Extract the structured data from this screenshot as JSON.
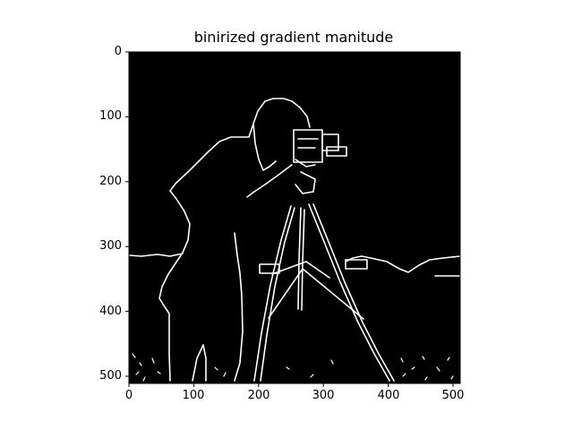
{
  "figure": {
    "title": "binirized gradient manitude",
    "background_color": "#000000",
    "edge_color": "#ffffff",
    "content_description": "binary edge map of a photographer with a tripod camera on a field with distant buildings",
    "x_axis": {
      "range": [
        0,
        511
      ],
      "ticks": [
        {
          "value": 0,
          "label": "0"
        },
        {
          "value": 100,
          "label": "100"
        },
        {
          "value": 200,
          "label": "200"
        },
        {
          "value": 300,
          "label": "300"
        },
        {
          "value": 400,
          "label": "400"
        },
        {
          "value": 500,
          "label": "500"
        }
      ]
    },
    "y_axis": {
      "range": [
        0,
        511
      ],
      "inverted": true,
      "ticks": [
        {
          "value": 0,
          "label": "0"
        },
        {
          "value": 100,
          "label": "100"
        },
        {
          "value": 200,
          "label": "200"
        },
        {
          "value": 300,
          "label": "300"
        },
        {
          "value": 400,
          "label": "400"
        },
        {
          "value": 500,
          "label": "500"
        }
      ]
    }
  }
}
